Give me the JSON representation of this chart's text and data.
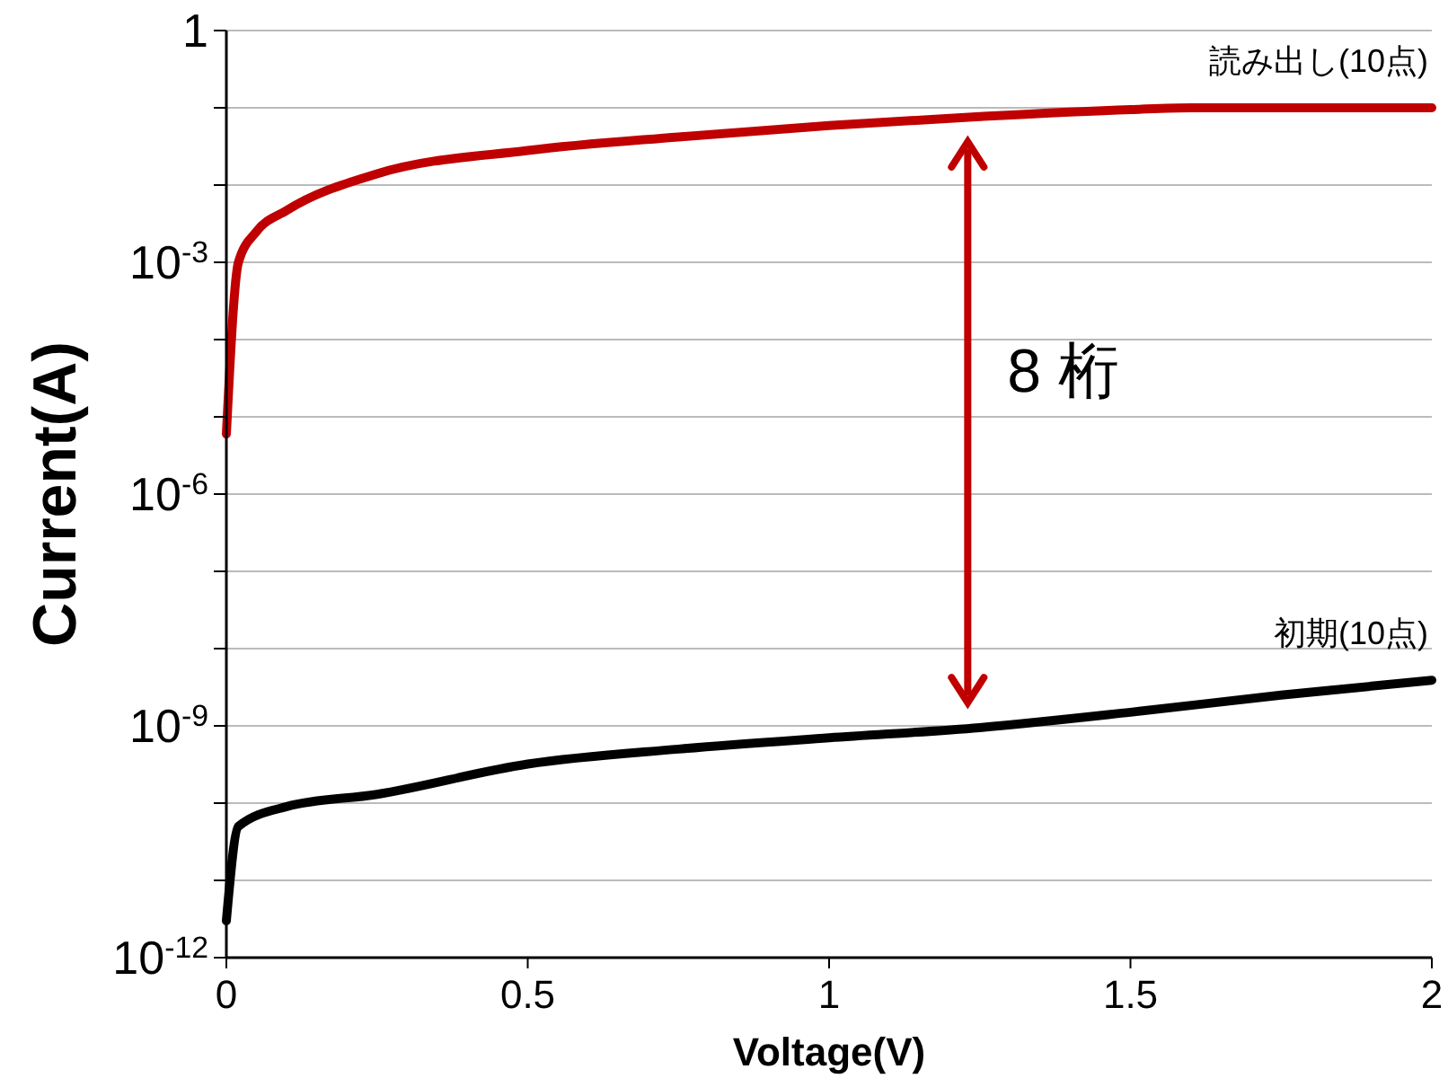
{
  "chart_data": {
    "type": "line",
    "xlabel": "Voltage(V)",
    "ylabel": "Current(A)",
    "annotations": [
      "8 桁"
    ],
    "log": "y",
    "grid": "y",
    "marker": "none",
    "line_style": "solid",
    "xlim": [
      0,
      2
    ],
    "xticks": [
      0,
      0.5,
      1,
      1.5,
      2
    ],
    "ylim": [
      1e-12,
      1
    ],
    "yticks": [
      {
        "value": 1e-12,
        "label": "10$^{-12}$"
      },
      {
        "value": 1e-11,
        "label": null
      },
      {
        "value": 1e-10,
        "label": null
      },
      {
        "value": 1e-09,
        "label": "10$^{-9}$"
      },
      {
        "value": 1e-08,
        "label": null
      },
      {
        "value": 1e-07,
        "label": null
      },
      {
        "value": 1e-06,
        "label": "10$^{-6}$"
      },
      {
        "value": 1e-05,
        "label": null
      },
      {
        "value": 0.0001,
        "label": null
      },
      {
        "value": 0.001,
        "label": "10$^{-3}$"
      },
      {
        "value": 0.01,
        "label": null
      },
      {
        "value": 0.1,
        "label": null
      },
      {
        "value": 1,
        "label": "1"
      }
    ],
    "series": [
      {
        "name": "読み出し(10点)",
        "color": "#c00000",
        "x": [
          0,
          0.02,
          0.05,
          0.1,
          0.25,
          0.5,
          0.75,
          1,
          1.25,
          1.5,
          1.6,
          2
        ],
        "values": [
          6e-06,
          0.001,
          0.0025,
          0.0047,
          0.014,
          0.028,
          0.042,
          0.059,
          0.077,
          0.095,
          0.1,
          0.1
        ]
      },
      {
        "name": "初期(10点)",
        "color": "#000000",
        "x": [
          0,
          0.02,
          0.1,
          0.25,
          0.5,
          0.75,
          1,
          1.25,
          1.5,
          1.75,
          2
        ],
        "values": [
          3e-12,
          5e-11,
          9e-11,
          1.3e-10,
          3.2e-10,
          5e-10,
          7e-10,
          9.5e-10,
          1.5e-09,
          2.5e-09,
          3.9e-09
        ]
      }
    ]
  }
}
